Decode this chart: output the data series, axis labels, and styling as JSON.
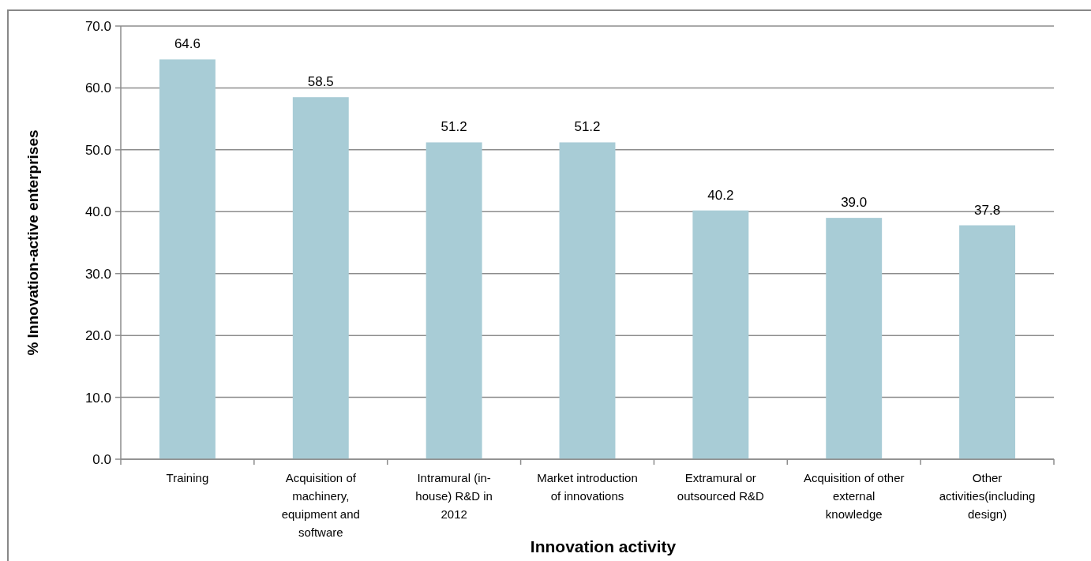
{
  "chart_data": {
    "type": "bar",
    "xlabel": "Innovation activity",
    "ylabel": "% Innovation-active enterprises",
    "categories": [
      "Training",
      "Acquisition of machinery, equipment and software",
      "Intramural (in-house) R&D in 2012",
      "Market introduction of innovations",
      "Extramural or outsourced R&D",
      "Acquisition of other external knowledge",
      "Other activities(including design)"
    ],
    "values": [
      64.6,
      58.5,
      51.2,
      51.2,
      40.2,
      39.0,
      37.8
    ],
    "color": "#a8ccd6",
    "value_labels": [
      "64.6",
      "58.5",
      "51.2",
      "51.2",
      "40.2",
      "39.0",
      "37.8"
    ],
    "ylim": [
      0,
      70
    ],
    "yticks": [
      {
        "value": 0,
        "label": "0.0"
      },
      {
        "value": 10,
        "label": "10.0"
      },
      {
        "value": 20,
        "label": "20.0"
      },
      {
        "value": 30,
        "label": "30.0"
      },
      {
        "value": 40,
        "label": "40.0"
      },
      {
        "value": 50,
        "label": "50.0"
      },
      {
        "value": 60,
        "label": "60.0"
      },
      {
        "value": 70,
        "label": "70.0"
      }
    ],
    "grid": "y"
  }
}
